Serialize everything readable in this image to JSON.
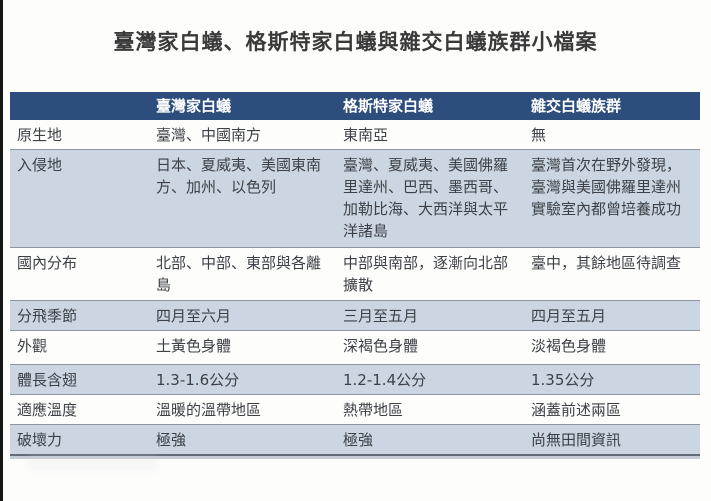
{
  "title": "臺灣家白蟻、格斯特家白蟻與雜交白蟻族群小檔案",
  "colors": {
    "header_bg": "#2d4d7d",
    "header_text": "#ffffff",
    "stripe_bg": "#ccd5e2",
    "row_bg": "#fdfdfb",
    "body_text": "#3d4147",
    "row_border": "#8e949c",
    "table_bottom_border": "#646c78",
    "title_text": "#3a3a3a"
  },
  "table": {
    "columns": [
      "",
      "臺灣家白蟻",
      "格斯特家白蟻",
      "雜交白蟻族群"
    ],
    "rows": [
      {
        "label": "原生地",
        "cells": [
          "臺灣、中國南方",
          "東南亞",
          "無"
        ]
      },
      {
        "label": "入侵地",
        "cells": [
          "日本、夏威夷、美國東南方、加州、以色列",
          "臺灣、夏威夷、美國佛羅里達州、巴西、墨西哥、加勒比海、大西洋與太平洋諸島",
          "臺灣首次在野外發現，臺灣與美國佛羅里達州實驗室內都曾培養成功"
        ]
      },
      {
        "label": "國內分布",
        "cells": [
          "北部、中部、東部與各離島",
          "中部與南部，逐漸向北部擴散",
          "臺中，其餘地區待調查"
        ]
      },
      {
        "label": "分飛季節",
        "cells": [
          "四月至六月",
          "三月至五月",
          "四月至五月"
        ]
      },
      {
        "label": "外觀",
        "cells": [
          "土黃色身體",
          "深褐色身體",
          "淡褐色身體"
        ]
      },
      {
        "label": "體長含翅",
        "cells": [
          "1.3-1.6公分",
          "1.2-1.4公分",
          "1.35公分"
        ]
      },
      {
        "label": "適應溫度",
        "cells": [
          "溫暖的溫帶地區",
          "熱帶地區",
          "涵蓋前述兩區"
        ]
      },
      {
        "label": "破壞力",
        "cells": [
          "極強",
          "極強",
          "尚無田間資訊"
        ]
      }
    ]
  }
}
